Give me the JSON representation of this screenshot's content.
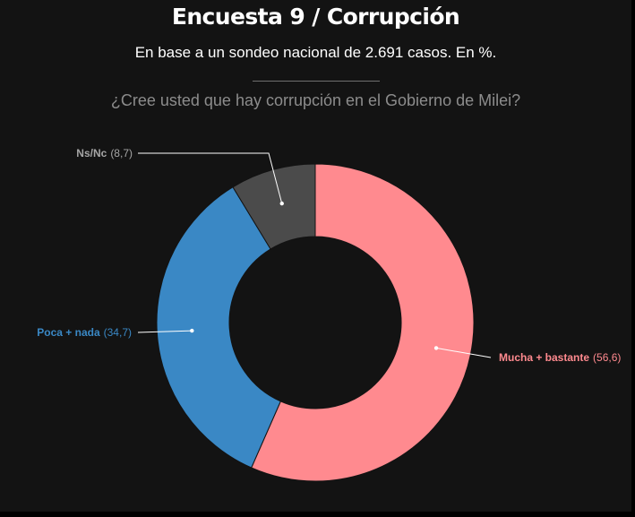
{
  "header": {
    "title": "Encuesta 9 / Corrupción",
    "subtitle": "En base a un sondeo nacional de 2.691 casos. En %.",
    "question": "¿Cree usted que hay corrupción en el Gobierno de Milei?"
  },
  "chart_data": {
    "type": "pie",
    "title": "Encuesta 9 / Corrupción",
    "subtitle": "En base a un sondeo nacional de 2.691 casos. En %.",
    "question": "¿Cree usted que hay corrupción en el Gobierno de Milei?",
    "unit": "%",
    "donut": true,
    "slices": [
      {
        "label": "Mucha + bastante",
        "value": 56.6,
        "value_label": "(56,6)",
        "color": "#ff8a8f"
      },
      {
        "label": "Poca + nada",
        "value": 34.7,
        "value_label": "(34,7)",
        "color": "#3a88c5"
      },
      {
        "label": "Ns/Nc",
        "value": 8.7,
        "value_label": "(8,7)",
        "color": "#4b4b4b"
      }
    ],
    "label_colors": {
      "Mucha + bastante": "#ff8a8f",
      "Poca + nada": "#3a88c5",
      "Ns/Nc": "#a6a6a6"
    },
    "background": "#131313"
  }
}
